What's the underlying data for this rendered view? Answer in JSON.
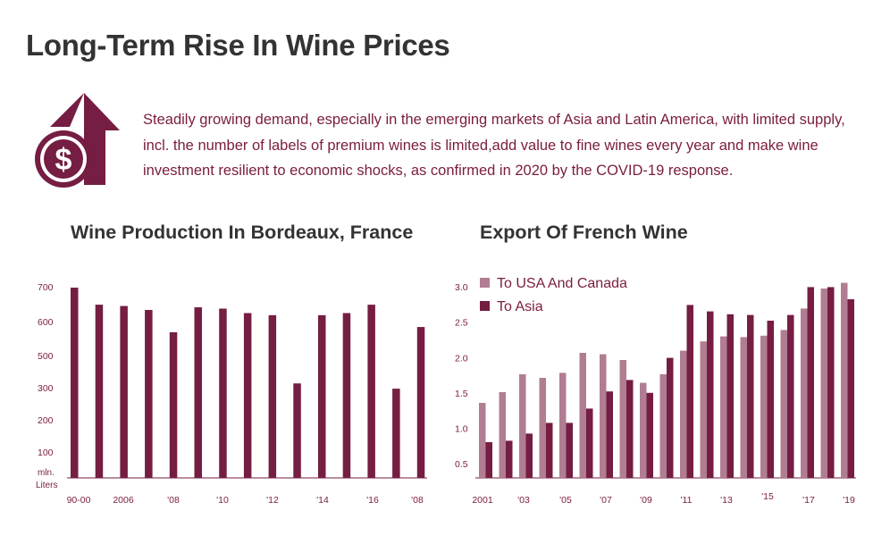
{
  "header": {
    "title": "Long-Term Rise In Wine Prices",
    "intro": "Steadily growing demand, especially in the emerging markets of Asia and Latin America, with limited supply, incl. the number of labels of premium wines is limited,add value to fine wines every year and make wine investment resilient to economic shocks, as confirmed in 2020 by the COVID-19 response."
  },
  "icon": {
    "name": "dollar-up-arrow-icon",
    "symbol": "$"
  },
  "colors": {
    "primary": "#751d42",
    "secondary": "#b07d92",
    "title": "#333333",
    "axis_text": "#7a1c3e"
  },
  "chart_data": [
    {
      "type": "bar",
      "title": "Wine Production In Bordeaux, France",
      "ylabel": "mln. Liters",
      "y_ticks": [
        "700",
        "600",
        "500",
        "300",
        "200",
        "100"
      ],
      "x_labels": [
        "90-00",
        "2006",
        "'08",
        "'10",
        "'12",
        "'14",
        "'16",
        "'08"
      ],
      "values": [
        725,
        660,
        655,
        640,
        555,
        650,
        645,
        628,
        620,
        360,
        620,
        628,
        660,
        340,
        575
      ],
      "bar_color": "#751d42"
    },
    {
      "type": "bar",
      "title": "Export Of French Wine",
      "y_ticks": [
        "3.0",
        "2.5",
        "2.0",
        "1.5",
        "1.0",
        "0.5"
      ],
      "ylim": [
        0.3,
        3.1
      ],
      "x_labels": [
        "2001",
        "'03",
        "'05",
        "'07",
        "'09",
        "'11",
        "'13",
        "'15",
        "'17",
        "'19"
      ],
      "legend": [
        "To USA And Canada",
        "To Asia"
      ],
      "series": [
        {
          "name": "To USA And Canada",
          "color": "#b07d92",
          "values": [
            1.4,
            1.55,
            1.8,
            1.75,
            1.82,
            2.1,
            2.08,
            2.0,
            1.68,
            1.8,
            2.13,
            2.26,
            2.33,
            2.32,
            2.34,
            2.42,
            2.72,
            3.0,
            3.08
          ]
        },
        {
          "name": "To Asia",
          "color": "#751d42",
          "values": [
            0.85,
            0.87,
            0.97,
            1.12,
            1.12,
            1.32,
            1.56,
            1.72,
            1.54,
            2.03,
            2.77,
            2.68,
            2.64,
            2.63,
            2.55,
            2.63,
            3.02,
            3.02,
            2.85
          ]
        }
      ]
    }
  ]
}
